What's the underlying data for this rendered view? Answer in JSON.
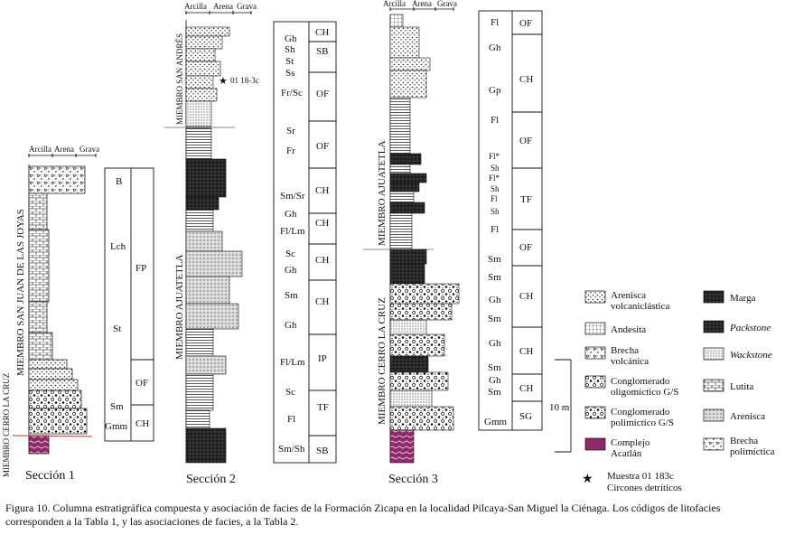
{
  "sections": [
    {
      "name": "Sección 1",
      "members": [
        "MIEMBRO SAN JUAN DE LAS JOYAS",
        "MIEMBRO CERRO LA CRUZ"
      ],
      "facies_codes": [
        "B",
        "Lch",
        "St",
        "Sm",
        "Gmm"
      ],
      "associations": [
        "FP",
        "OF",
        "CH"
      ]
    },
    {
      "name": "Sección 2",
      "members": [
        "MIEMBRO SAN ANDRÉS",
        "MIEMBRO AJUATETLA"
      ],
      "sample_label": "01 18-3c",
      "facies_codes": [
        "Gh",
        "Sh",
        "St",
        "Ss",
        "Fr/Sc",
        "Sr",
        "Fr",
        "Sm/Sr",
        "Gh",
        "Fl/Lm",
        "Sc",
        "Gh",
        "Sm",
        "Gh",
        "Fl/Lm",
        "Sc",
        "Fl",
        "Sm/Sh"
      ],
      "associations": [
        "CH",
        "SB",
        "OF",
        "OF",
        "CH",
        "CH",
        "CH",
        "CH",
        "IP",
        "TF",
        "SB"
      ]
    },
    {
      "name": "Sección 3",
      "members": [
        "MIEMBRO AJUATETLA",
        "MIEMBRO CERRO LA CRUZ"
      ],
      "facies_codes": [
        "Fl",
        "Gh",
        "Gp",
        "Fl",
        "Fl*",
        "Sh",
        "Fl*",
        "Sh",
        "Fl",
        "Sh",
        "Fl",
        "Sm",
        "Sm",
        "Gh",
        "Sm",
        "Gh",
        "Sm",
        "Gh",
        "Sm",
        "Gmm"
      ],
      "associations": [
        "OF",
        "CH",
        "OF",
        "TF",
        "OF",
        "CH",
        "CH",
        "CH",
        "SG"
      ]
    }
  ],
  "grain_scale": {
    "clay": "Arcilla",
    "sand": "Arena",
    "gravel": "Grava"
  },
  "scale_bar": "10 m",
  "legend": [
    {
      "key": "arenisca-volcaniclastica",
      "label": [
        "Arenisca",
        "volcaniclástica"
      ]
    },
    {
      "key": "andesita",
      "label": [
        "Andesita"
      ]
    },
    {
      "key": "brecha-volcanica",
      "label": [
        "Brecha",
        "volcánica"
      ]
    },
    {
      "key": "conglomerado-oligomictico",
      "label": [
        "Conglomerado",
        "oligomíctico G/S"
      ]
    },
    {
      "key": "conglomerado-polimictico",
      "label": [
        "Conglomerado",
        "polimíctico G/S"
      ]
    },
    {
      "key": "complejo-acatlan",
      "label": [
        "Complejo",
        "Acatlán"
      ]
    },
    {
      "key": "marga",
      "label": [
        "Marga"
      ]
    },
    {
      "key": "packstone",
      "label": [
        "Packstone"
      ]
    },
    {
      "key": "wackstone",
      "label": [
        "Wackstone"
      ]
    },
    {
      "key": "lutita",
      "label": [
        "Lutita"
      ]
    },
    {
      "key": "arenisca",
      "label": [
        "Arenisca"
      ]
    },
    {
      "key": "brecha-polimictica",
      "label": [
        "Brecha",
        "polimíctica"
      ]
    }
  ],
  "sample_legend": [
    "Muestra 01 183c",
    "Circones detríticos"
  ],
  "caption": "Figura 10. Columna estratigráfica compuesta y asociación de facies de la Formación Zicapa en la localidad Pilcaya-San Miguel la Ciénaga. Los códigos de litofacies corresponden a la Tabla 1, y las asociaciones de facies, a la Tabla 2.",
  "colors": {
    "acatlan": "#8e2a6a",
    "contact_line": "#c0392b"
  }
}
